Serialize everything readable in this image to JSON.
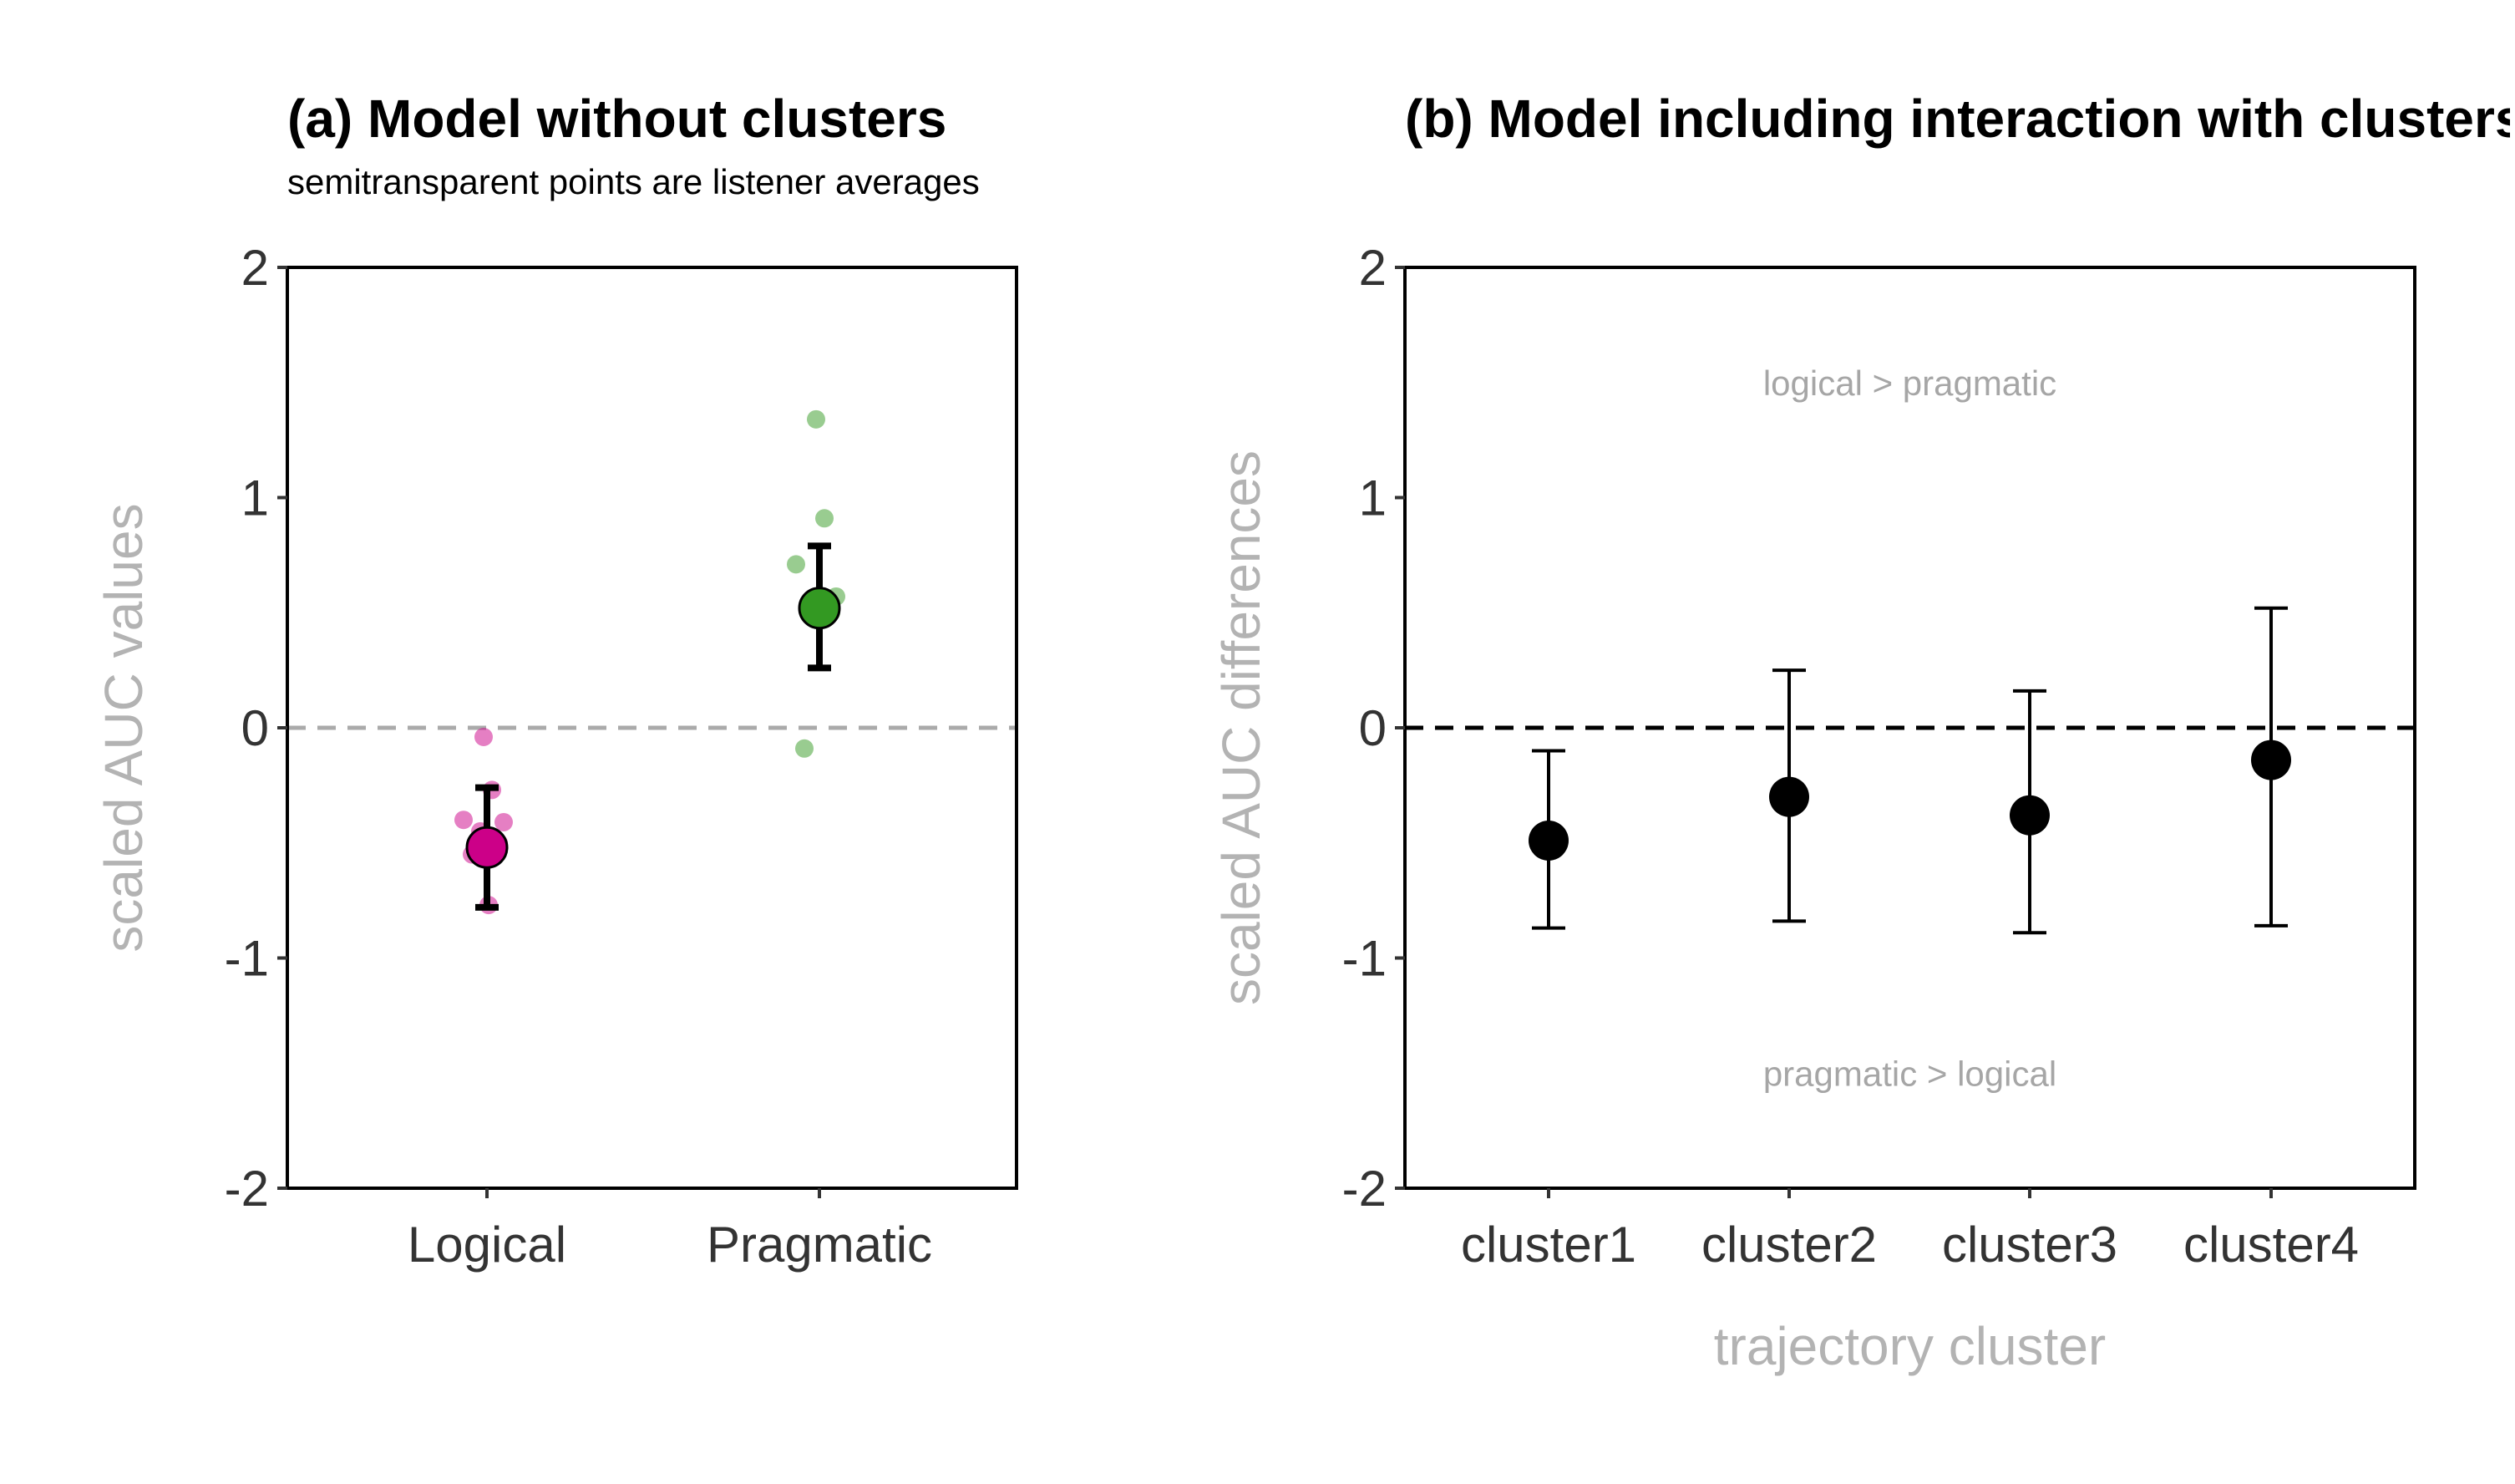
{
  "chart_data": [
    {
      "type": "scatter",
      "title": "(a) Model without clusters",
      "subtitle": "semitransparent points are listener averages",
      "xlabel": "",
      "ylabel": "scaled AUC values",
      "categories": [
        "Logical",
        "Pragmatic"
      ],
      "ylim": [
        -2,
        2
      ],
      "yticks": [
        -2,
        -1,
        0,
        1,
        2
      ],
      "reference_line": {
        "y": 0,
        "style": "dashed",
        "color": "#aaaaaa"
      },
      "colors": {
        "Logical": "#cc0088",
        "Pragmatic": "#339922"
      },
      "estimates": [
        {
          "category": "Logical",
          "mean": -0.52,
          "lower": -0.78,
          "upper": -0.26
        },
        {
          "category": "Pragmatic",
          "mean": 0.52,
          "lower": 0.26,
          "upper": 0.79
        }
      ],
      "listener_averages": [
        {
          "category": "Logical",
          "values": [
            -0.04,
            -0.27,
            -0.4,
            -0.41,
            -0.45,
            -0.5,
            -0.55,
            -0.77
          ]
        },
        {
          "category": "Pragmatic",
          "values": [
            1.34,
            0.91,
            0.71,
            0.57,
            0.52,
            0.5,
            -0.09
          ]
        }
      ]
    },
    {
      "type": "scatter",
      "title": "(b) Model including interaction with clusters",
      "xlabel": "trajectory cluster",
      "ylabel": "scaled AUC differences",
      "categories": [
        "cluster1",
        "cluster2",
        "cluster3",
        "cluster4"
      ],
      "ylim": [
        -2,
        2
      ],
      "yticks": [
        -2,
        -1,
        0,
        1,
        2
      ],
      "reference_line": {
        "y": 0,
        "style": "dashed",
        "color": "#000000"
      },
      "annotations": [
        {
          "text": "logical > pragmatic",
          "y": 1.5
        },
        {
          "text": "pragmatic > logical",
          "y": -1.5
        }
      ],
      "estimates": [
        {
          "category": "cluster1",
          "mean": -0.49,
          "lower": -0.87,
          "upper": -0.1
        },
        {
          "category": "cluster2",
          "mean": -0.3,
          "lower": -0.84,
          "upper": 0.25
        },
        {
          "category": "cluster3",
          "mean": -0.38,
          "lower": -0.89,
          "upper": 0.16
        },
        {
          "category": "cluster4",
          "mean": -0.14,
          "lower": -0.86,
          "upper": 0.52
        }
      ]
    }
  ]
}
